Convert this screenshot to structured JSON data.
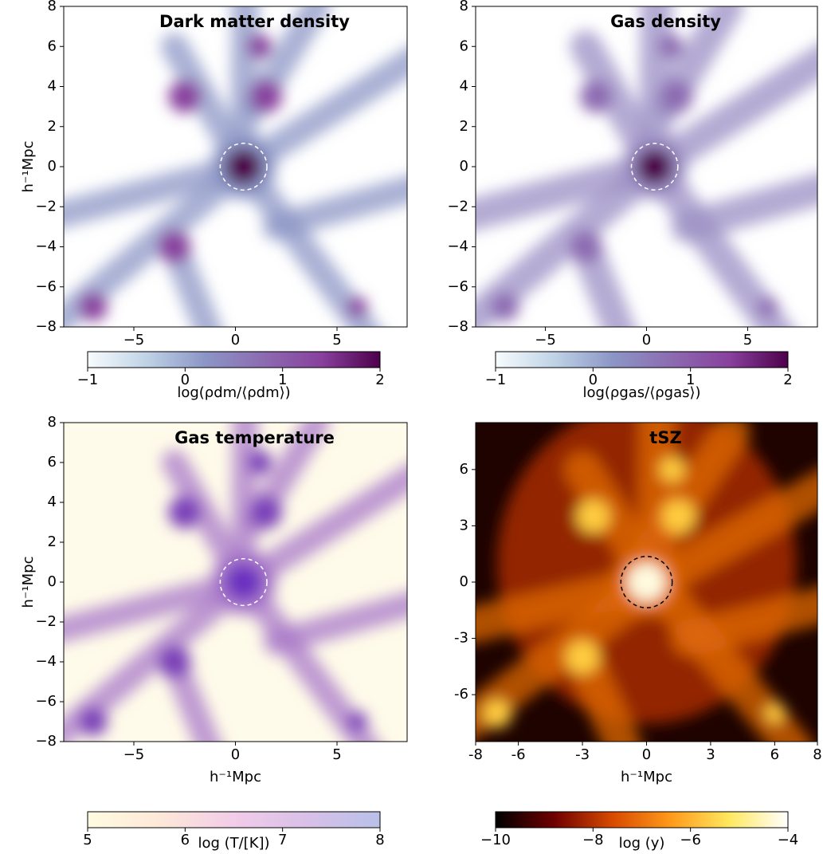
{
  "chart_data": [
    {
      "type": "image",
      "title": "Dark matter density",
      "xlim": [
        -8.45,
        8.45
      ],
      "ylim": [
        -8,
        8
      ],
      "xticks": [
        {
          "value": -5,
          "label": "−5"
        },
        0,
        5
      ],
      "yticks": [
        {
          "value": -8,
          "label": "−8"
        },
        {
          "value": -6,
          "label": "−6"
        },
        {
          "value": -4,
          "label": "−4"
        },
        {
          "value": -2,
          "label": "−2"
        },
        0,
        2,
        4,
        6,
        8
      ],
      "ylabel": "h⁻¹Mpc",
      "circle": {
        "x": 0.4,
        "y": 0,
        "r": 1.15,
        "color": "#ffffff"
      },
      "colorbar": {
        "label": "log(ρdm/⟨ρdm⟩)",
        "lim": [
          -1,
          2
        ],
        "ticks": [
          {
            "value": -1,
            "label": "−1"
          },
          0,
          1,
          2
        ],
        "colors": [
          "#f7fcfd",
          "#bfd3e6",
          "#8c96c6",
          "#8c6bb1",
          "#88419d",
          "#4d004b"
        ]
      }
    },
    {
      "type": "image",
      "title": "Gas density",
      "xlim": [
        -8.45,
        8.45
      ],
      "ylim": [
        -8,
        8
      ],
      "xticks": [
        {
          "value": -5,
          "label": "−5"
        },
        0,
        5
      ],
      "yticks": [
        {
          "value": -8,
          "label": "−8"
        },
        {
          "value": -6,
          "label": "−6"
        },
        {
          "value": -4,
          "label": "−4"
        },
        {
          "value": -2,
          "label": "−2"
        },
        0,
        2,
        4,
        6,
        8
      ],
      "circle": {
        "x": 0.4,
        "y": 0,
        "r": 1.15,
        "color": "#ffffff"
      },
      "colorbar": {
        "label": "log(ρgas/⟨ρgas⟩)",
        "lim": [
          -1,
          2
        ],
        "ticks": [
          {
            "value": -1,
            "label": "−1"
          },
          0,
          1,
          2
        ],
        "colors": [
          "#f7fcfd",
          "#bfd3e6",
          "#8c96c6",
          "#8c6bb1",
          "#88419d",
          "#4d004b"
        ]
      }
    },
    {
      "type": "image",
      "title": "Gas temperature",
      "xlim": [
        -8.45,
        8.45
      ],
      "ylim": [
        -8,
        8
      ],
      "xticks": [
        {
          "value": -5,
          "label": "−5"
        },
        0,
        5
      ],
      "yticks": [
        {
          "value": -8,
          "label": "−8"
        },
        {
          "value": -6,
          "label": "−6"
        },
        {
          "value": -4,
          "label": "−4"
        },
        {
          "value": -2,
          "label": "−2"
        },
        0,
        2,
        4,
        6,
        8
      ],
      "xlabel": "h⁻¹Mpc",
      "ylabel": "h⁻¹Mpc",
      "circle": {
        "x": 0.4,
        "y": 0,
        "r": 1.15,
        "color": "#ffffff"
      },
      "colorbar": {
        "label": "log (T/[K])",
        "lim": [
          5,
          8
        ],
        "ticks": [
          5,
          6,
          7,
          8
        ],
        "colors": [
          "#fffbe0",
          "#fde8d8",
          "#f2cce8",
          "#d8c0e8",
          "#b8c0e8"
        ]
      }
    },
    {
      "type": "image",
      "title": "tSZ",
      "xlim": [
        -8,
        8
      ],
      "ylim": [
        -8.5,
        8.5
      ],
      "xticks": [
        {
          "value": -8,
          "label": "-8"
        },
        {
          "value": -6,
          "label": "-6"
        },
        {
          "value": -3,
          "label": "-3"
        },
        0,
        3,
        6,
        8
      ],
      "yticks": [
        {
          "value": -6,
          "label": "-6"
        },
        {
          "value": -3,
          "label": "-3"
        },
        0,
        3,
        6
      ],
      "xlabel": "h⁻¹Mpc",
      "circle": {
        "x": 0,
        "y": 0,
        "r": 1.2,
        "color": "#000000"
      },
      "colorbar": {
        "label": "log (y)",
        "lim": [
          -10,
          -4
        ],
        "ticks": [
          {
            "value": -10,
            "label": "−10"
          },
          {
            "value": -8,
            "label": "−8"
          },
          {
            "value": -6,
            "label": "−6"
          },
          {
            "value": -4,
            "label": "−4"
          }
        ],
        "colors": [
          "#000000",
          "#6e0000",
          "#d84a00",
          "#ff9a1a",
          "#ffe860",
          "#ffffff"
        ]
      }
    }
  ]
}
